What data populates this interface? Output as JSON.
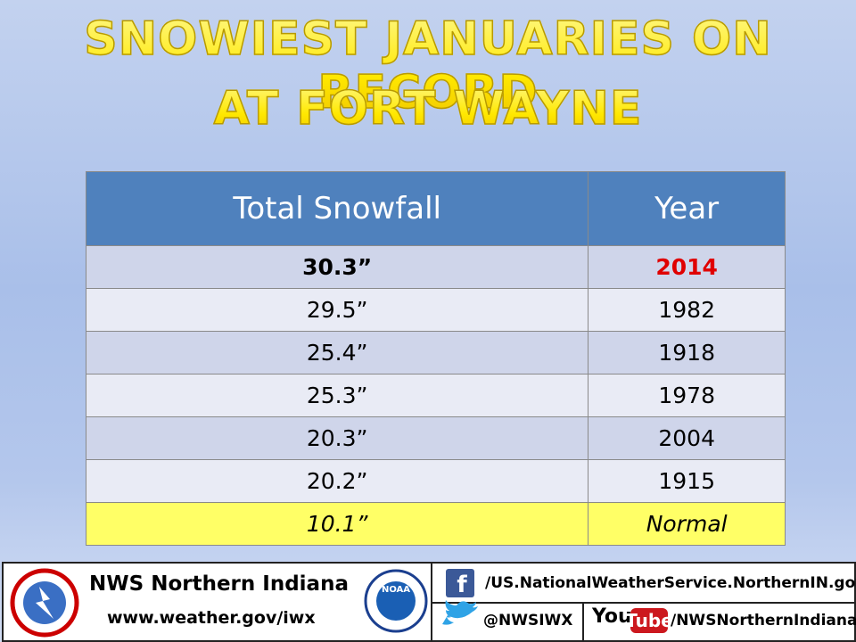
{
  "title": {
    "lines": [
      "SNOWIEST JANUARIES ON RECORD",
      "AT FORT WAYNE"
    ]
  },
  "table": {
    "header": [
      "Total Snowfall",
      "Year"
    ],
    "rows": [
      [
        "30.3”",
        "2014"
      ],
      [
        "29.5”",
        "1982"
      ],
      [
        "25.4”",
        "1918"
      ],
      [
        "25.3”",
        "1978"
      ],
      [
        "20.3”",
        "2004"
      ],
      [
        "20.2”",
        "1915"
      ],
      [
        "10.1”",
        "Normal"
      ]
    ]
  },
  "footer": {
    "office": "NWS Northern Indiana",
    "website": "www.weather.gov/iwx",
    "noaa_logo": "NOAA",
    "facebook_icon": "f",
    "facebook": "/US.NationalWeatherService.NorthernIN.gov",
    "twitter": "@NWSIWX",
    "youtube_logo": [
      "You",
      "Tube"
    ],
    "youtube": "/NWSNorthernIndiana"
  }
}
